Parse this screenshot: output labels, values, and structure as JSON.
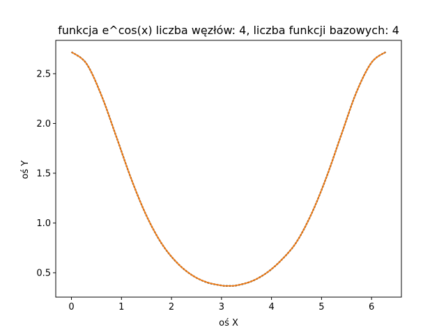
{
  "chart_data": {
    "type": "line",
    "title": "funkcja e^cos(x) liczba węzłów: 4, liczba funkcji bazowych: 4",
    "xlabel": "oś X",
    "ylabel": "oś Y",
    "xlim": [
      -0.314,
      6.597
    ],
    "ylim": [
      0.255,
      2.835
    ],
    "xticks": [
      0,
      1,
      2,
      3,
      4,
      5,
      6
    ],
    "yticks": [
      0.5,
      1.0,
      1.5,
      2.0,
      2.5
    ],
    "xtick_labels": [
      "0",
      "1",
      "2",
      "3",
      "4",
      "5",
      "6"
    ],
    "ytick_labels": [
      "0.5",
      "1.0",
      "1.5",
      "2.0",
      "2.5"
    ],
    "grid": false,
    "series": [
      {
        "color": "#1f1f1f",
        "style": "dashed",
        "x": [
          0,
          0.3,
          0.6,
          0.9,
          1.2,
          1.5,
          1.8,
          2.1,
          2.4,
          2.7,
          3.0,
          3.14159,
          3.3,
          3.6,
          3.9,
          4.2,
          4.5,
          4.8,
          5.1,
          5.4,
          5.7,
          6.0,
          6.28319
        ],
        "y": [
          2.718,
          2.601,
          2.281,
          1.863,
          1.437,
          1.073,
          0.796,
          0.606,
          0.479,
          0.405,
          0.372,
          0.368,
          0.373,
          0.414,
          0.498,
          0.629,
          0.809,
          1.093,
          1.462,
          1.893,
          2.316,
          2.612,
          2.718
        ]
      },
      {
        "color": "#ff7f0e",
        "style": "solid",
        "x": [
          0,
          0.3,
          0.6,
          0.9,
          1.2,
          1.5,
          1.8,
          2.1,
          2.4,
          2.7,
          3.0,
          3.14159,
          3.3,
          3.6,
          3.9,
          4.2,
          4.5,
          4.8,
          5.1,
          5.4,
          5.7,
          6.0,
          6.28319
        ],
        "y": [
          2.718,
          2.601,
          2.281,
          1.863,
          1.437,
          1.073,
          0.796,
          0.606,
          0.479,
          0.405,
          0.372,
          0.368,
          0.373,
          0.414,
          0.498,
          0.629,
          0.809,
          1.093,
          1.462,
          1.893,
          2.316,
          2.612,
          2.718
        ]
      }
    ]
  }
}
